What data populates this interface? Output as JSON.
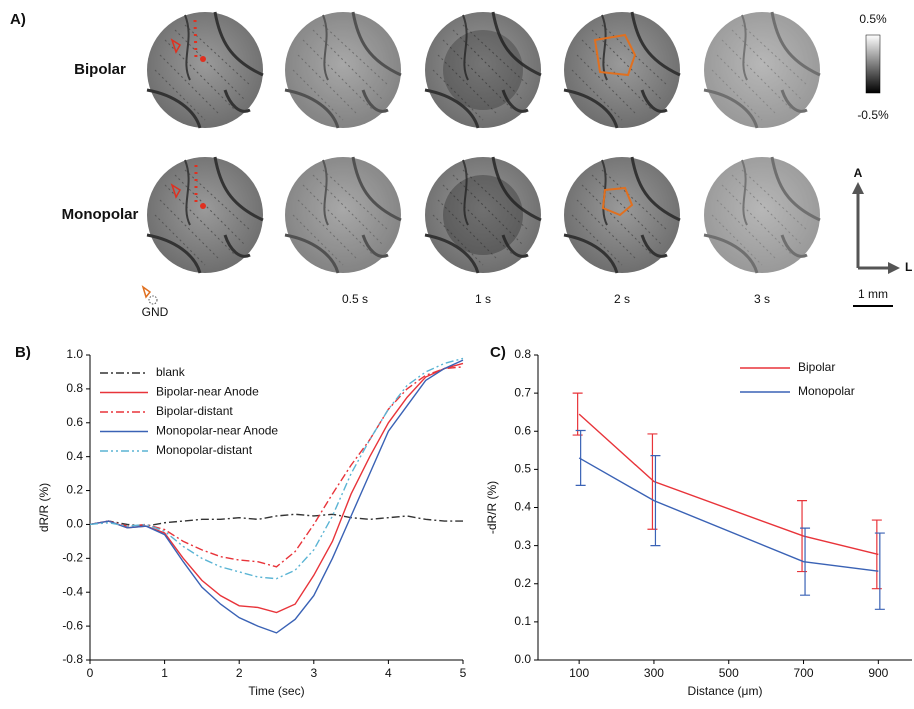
{
  "panel_a": {
    "label": "A)",
    "rows": [
      "Bipolar",
      "Monopolar"
    ],
    "times": [
      "0.5 s",
      "1 s",
      "2 s",
      "3 s"
    ],
    "gnd": "GND",
    "colorbar": {
      "max": "0.5%",
      "min": "-0.5%"
    },
    "axes": {
      "anterior": "A",
      "lateral": "L"
    },
    "scale_bar": "1 mm"
  },
  "chart_data": [
    {
      "type": "line",
      "panel": "B)",
      "xlabel": "Time (sec)",
      "ylabel": "dR/R (%)",
      "x": [
        0,
        0.25,
        0.5,
        0.75,
        1,
        1.25,
        1.5,
        1.75,
        2,
        2.25,
        2.5,
        2.75,
        3,
        3.25,
        3.5,
        3.75,
        4,
        4.25,
        4.5,
        4.75,
        5
      ],
      "xlim": [
        0,
        5
      ],
      "xticks": [
        0,
        1,
        2,
        3,
        4,
        5
      ],
      "ylim": [
        -0.8,
        1.0
      ],
      "yticks": [
        -0.8,
        -0.6,
        -0.4,
        -0.2,
        {
          "value": 0,
          "label": "0.0"
        },
        0.2,
        0.4,
        0.6,
        0.8,
        {
          "value": 1.0,
          "label": "1.0"
        }
      ],
      "legend": "upper left",
      "series": [
        {
          "name": "blank",
          "color": "#333333",
          "dash": "dashdot",
          "values": [
            0,
            0.02,
            0,
            -0.01,
            0.01,
            0.02,
            0.03,
            0.03,
            0.04,
            0.03,
            0.05,
            0.06,
            0.05,
            0.06,
            0.04,
            0.03,
            0.04,
            0.05,
            0.03,
            0.02,
            0.02
          ]
        },
        {
          "name": "Bipolar-near Anode",
          "color": "#e8343a",
          "dash": "solid",
          "values": [
            0,
            0.02,
            -0.02,
            -0.01,
            -0.05,
            -0.2,
            -0.33,
            -0.42,
            -0.48,
            -0.49,
            -0.52,
            -0.47,
            -0.3,
            -0.1,
            0.18,
            0.4,
            0.6,
            0.75,
            0.87,
            0.92,
            0.95
          ]
        },
        {
          "name": "Bipolar-distant",
          "color": "#e8343a",
          "dash": "dashdot",
          "values": [
            0,
            0.02,
            -0.01,
            0,
            -0.03,
            -0.1,
            -0.15,
            -0.19,
            -0.21,
            -0.22,
            -0.25,
            -0.16,
            0,
            0.18,
            0.35,
            0.5,
            0.68,
            0.8,
            0.88,
            0.92,
            0.93
          ]
        },
        {
          "name": "Monopolar-near Anode",
          "color": "#3a62b5",
          "dash": "solid",
          "values": [
            0,
            0.02,
            -0.02,
            -0.01,
            -0.06,
            -0.22,
            -0.37,
            -0.47,
            -0.55,
            -0.6,
            -0.64,
            -0.56,
            -0.42,
            -0.2,
            0.05,
            0.3,
            0.55,
            0.7,
            0.85,
            0.92,
            0.97
          ]
        },
        {
          "name": "Monopolar-distant",
          "color": "#5ab4d4",
          "dash": "dashdotdot",
          "values": [
            0,
            0.01,
            -0.01,
            0,
            -0.04,
            -0.13,
            -0.2,
            -0.25,
            -0.28,
            -0.31,
            -0.32,
            -0.27,
            -0.15,
            0.05,
            0.3,
            0.5,
            0.68,
            0.82,
            0.9,
            0.95,
            0.98
          ]
        }
      ]
    },
    {
      "type": "line",
      "panel": "C)",
      "xlabel": "Distance (μm)",
      "ylabel": "-dR/R (%)",
      "x": [
        100,
        300,
        700,
        900
      ],
      "xlim": [
        -10,
        990
      ],
      "xticks": [
        100,
        300,
        500,
        700,
        900
      ],
      "ylim": [
        0,
        0.8
      ],
      "yticks": [
        {
          "value": 0,
          "label": "0.0"
        },
        0.1,
        0.2,
        0.3,
        0.4,
        0.5,
        0.6,
        0.7,
        0.8
      ],
      "legend": "upper right",
      "series": [
        {
          "name": "Bipolar",
          "color": "#e8343a",
          "dash": "solid",
          "values": [
            0.645,
            0.468,
            0.325,
            0.277
          ],
          "errors": [
            0.055,
            0.125,
            0.093,
            0.09
          ]
        },
        {
          "name": "Monopolar",
          "color": "#3a62b5",
          "dash": "solid",
          "values": [
            0.53,
            0.418,
            0.258,
            0.233
          ],
          "errors": [
            0.072,
            0.118,
            0.088,
            0.1
          ]
        }
      ]
    }
  ]
}
